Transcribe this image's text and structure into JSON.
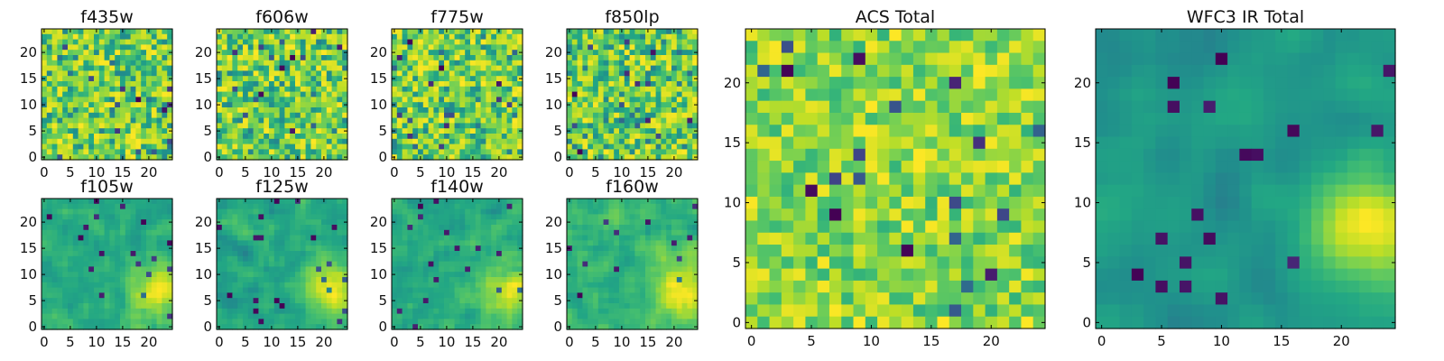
{
  "colormap": "viridis",
  "chart_data": [
    {
      "type": "heatmap",
      "title": "f435w",
      "grid_size": 25,
      "xlim": [
        0,
        24
      ],
      "ylim": [
        0,
        24
      ],
      "xticks": [
        0,
        5,
        10,
        15,
        20
      ],
      "yticks": [
        0,
        5,
        10,
        15,
        20
      ],
      "field": "uniform noise"
    },
    {
      "type": "heatmap",
      "title": "f606w",
      "grid_size": 25,
      "xlim": [
        0,
        24
      ],
      "ylim": [
        0,
        24
      ],
      "xticks": [
        0,
        5,
        10,
        15,
        20
      ],
      "yticks": [
        0,
        5,
        10,
        15,
        20
      ],
      "field": "uniform noise"
    },
    {
      "type": "heatmap",
      "title": "f775w",
      "grid_size": 25,
      "xlim": [
        0,
        24
      ],
      "ylim": [
        0,
        24
      ],
      "xticks": [
        0,
        5,
        10,
        15,
        20
      ],
      "yticks": [
        0,
        5,
        10,
        15,
        20
      ],
      "field": "uniform noise"
    },
    {
      "type": "heatmap",
      "title": "f850lp",
      "grid_size": 25,
      "xlim": [
        0,
        24
      ],
      "ylim": [
        0,
        24
      ],
      "xticks": [
        0,
        5,
        10,
        15,
        20
      ],
      "yticks": [
        0,
        5,
        10,
        15,
        20
      ],
      "field": "uniform noise"
    },
    {
      "type": "heatmap",
      "title": "f105w",
      "grid_size": 25,
      "xlim": [
        0,
        24
      ],
      "ylim": [
        0,
        24
      ],
      "xticks": [
        0,
        5,
        10,
        15,
        20
      ],
      "yticks": [
        0,
        5,
        10,
        15,
        20
      ],
      "field": "bright region lower-right"
    },
    {
      "type": "heatmap",
      "title": "f125w",
      "grid_size": 25,
      "xlim": [
        0,
        24
      ],
      "ylim": [
        0,
        24
      ],
      "xticks": [
        0,
        5,
        10,
        15,
        20
      ],
      "yticks": [
        0,
        5,
        10,
        15,
        20
      ],
      "field": "bright region lower-right"
    },
    {
      "type": "heatmap",
      "title": "f140w",
      "grid_size": 25,
      "xlim": [
        0,
        24
      ],
      "ylim": [
        0,
        24
      ],
      "xticks": [
        0,
        5,
        10,
        15,
        20
      ],
      "yticks": [
        0,
        5,
        10,
        15,
        20
      ],
      "field": "bright region lower-right"
    },
    {
      "type": "heatmap",
      "title": "f160w",
      "grid_size": 25,
      "xlim": [
        0,
        24
      ],
      "ylim": [
        0,
        24
      ],
      "xticks": [
        0,
        5,
        10,
        15,
        20
      ],
      "yticks": [
        0,
        5,
        10,
        15,
        20
      ],
      "field": "bright region lower-right"
    },
    {
      "type": "heatmap",
      "title": "ACS Total",
      "grid_size": 25,
      "xlim": [
        0,
        24
      ],
      "ylim": [
        0,
        24
      ],
      "xticks": [
        0,
        5,
        10,
        15,
        20
      ],
      "yticks": [
        0,
        5,
        10,
        15,
        20
      ],
      "field": "noise, brighter at top and left"
    },
    {
      "type": "heatmap",
      "title": "WFC3 IR Total",
      "grid_size": 25,
      "xlim": [
        0,
        24
      ],
      "ylim": [
        0,
        24
      ],
      "xticks": [
        0,
        5,
        10,
        15,
        20
      ],
      "yticks": [
        0,
        5,
        10,
        15,
        20
      ],
      "field": "smooth, bright blob around x=22,y=8, dark spots upper-left"
    }
  ]
}
